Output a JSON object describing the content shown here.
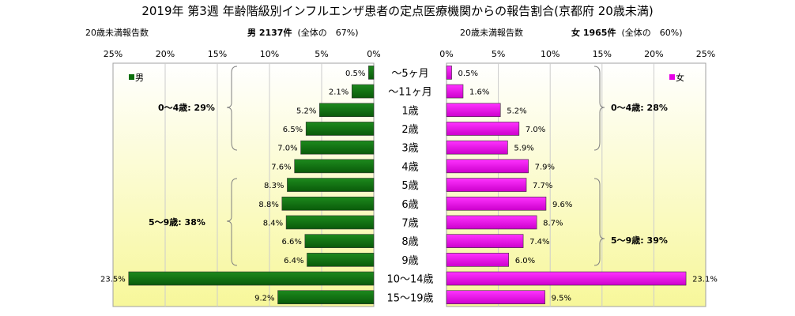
{
  "title": "2019年 第3週 年齢階級別インフルエンザ患者の定点医療機関からの報告割合(京都府 20歳未満)",
  "male_header": {
    "count_label": "20歳未満報告数",
    "sex_count": "男 2137件",
    "share": "(全体の　67%)"
  },
  "female_header": {
    "count_label": "20歳未満報告数",
    "sex_count": "女 1965件",
    "share": "(全体の　60%)"
  },
  "colors": {
    "male": "#0a6e0a",
    "female": "#e600e6",
    "panel_top": "#ffffff",
    "panel_bottom": "#f7f79a"
  },
  "chart_data": {
    "type": "bar",
    "categories": [
      "〜5ヶ月",
      "〜11ヶ月",
      "1歳",
      "2歳",
      "3歳",
      "4歳",
      "5歳",
      "6歳",
      "7歳",
      "8歳",
      "9歳",
      "10〜14歳",
      "15〜19歳"
    ],
    "male": {
      "legend": "男",
      "values": [
        0.5,
        2.1,
        5.2,
        6.5,
        7.0,
        7.6,
        8.3,
        8.8,
        8.4,
        6.6,
        6.4,
        23.5,
        9.2
      ],
      "labels": [
        "0.5%",
        "2.1%",
        "5.2%",
        "6.5%",
        "7.0%",
        "7.6%",
        "8.3%",
        "8.8%",
        "8.4%",
        "6.6%",
        "6.4%",
        "23.5%",
        "9.2%"
      ],
      "xlim": [
        25,
        0
      ],
      "ticks": [
        "25%",
        "20%",
        "15%",
        "10%",
        "5%",
        "0%"
      ],
      "groups": [
        "0〜4歳: 29%",
        "5〜9歳: 38%"
      ]
    },
    "female": {
      "legend": "女",
      "values": [
        0.5,
        1.6,
        5.2,
        7.0,
        5.9,
        7.9,
        7.7,
        9.6,
        8.7,
        7.4,
        6.0,
        23.1,
        9.5
      ],
      "labels": [
        "0.5%",
        "1.6%",
        "5.2%",
        "7.0%",
        "5.9%",
        "7.9%",
        "7.7%",
        "9.6%",
        "8.7%",
        "7.4%",
        "6.0%",
        "23.1%",
        "9.5%"
      ],
      "xlim": [
        0,
        25
      ],
      "ticks": [
        "0%",
        "5%",
        "10%",
        "15%",
        "20%",
        "25%"
      ],
      "groups": [
        "0〜4歳: 28%",
        "5〜9歳: 39%"
      ]
    }
  }
}
